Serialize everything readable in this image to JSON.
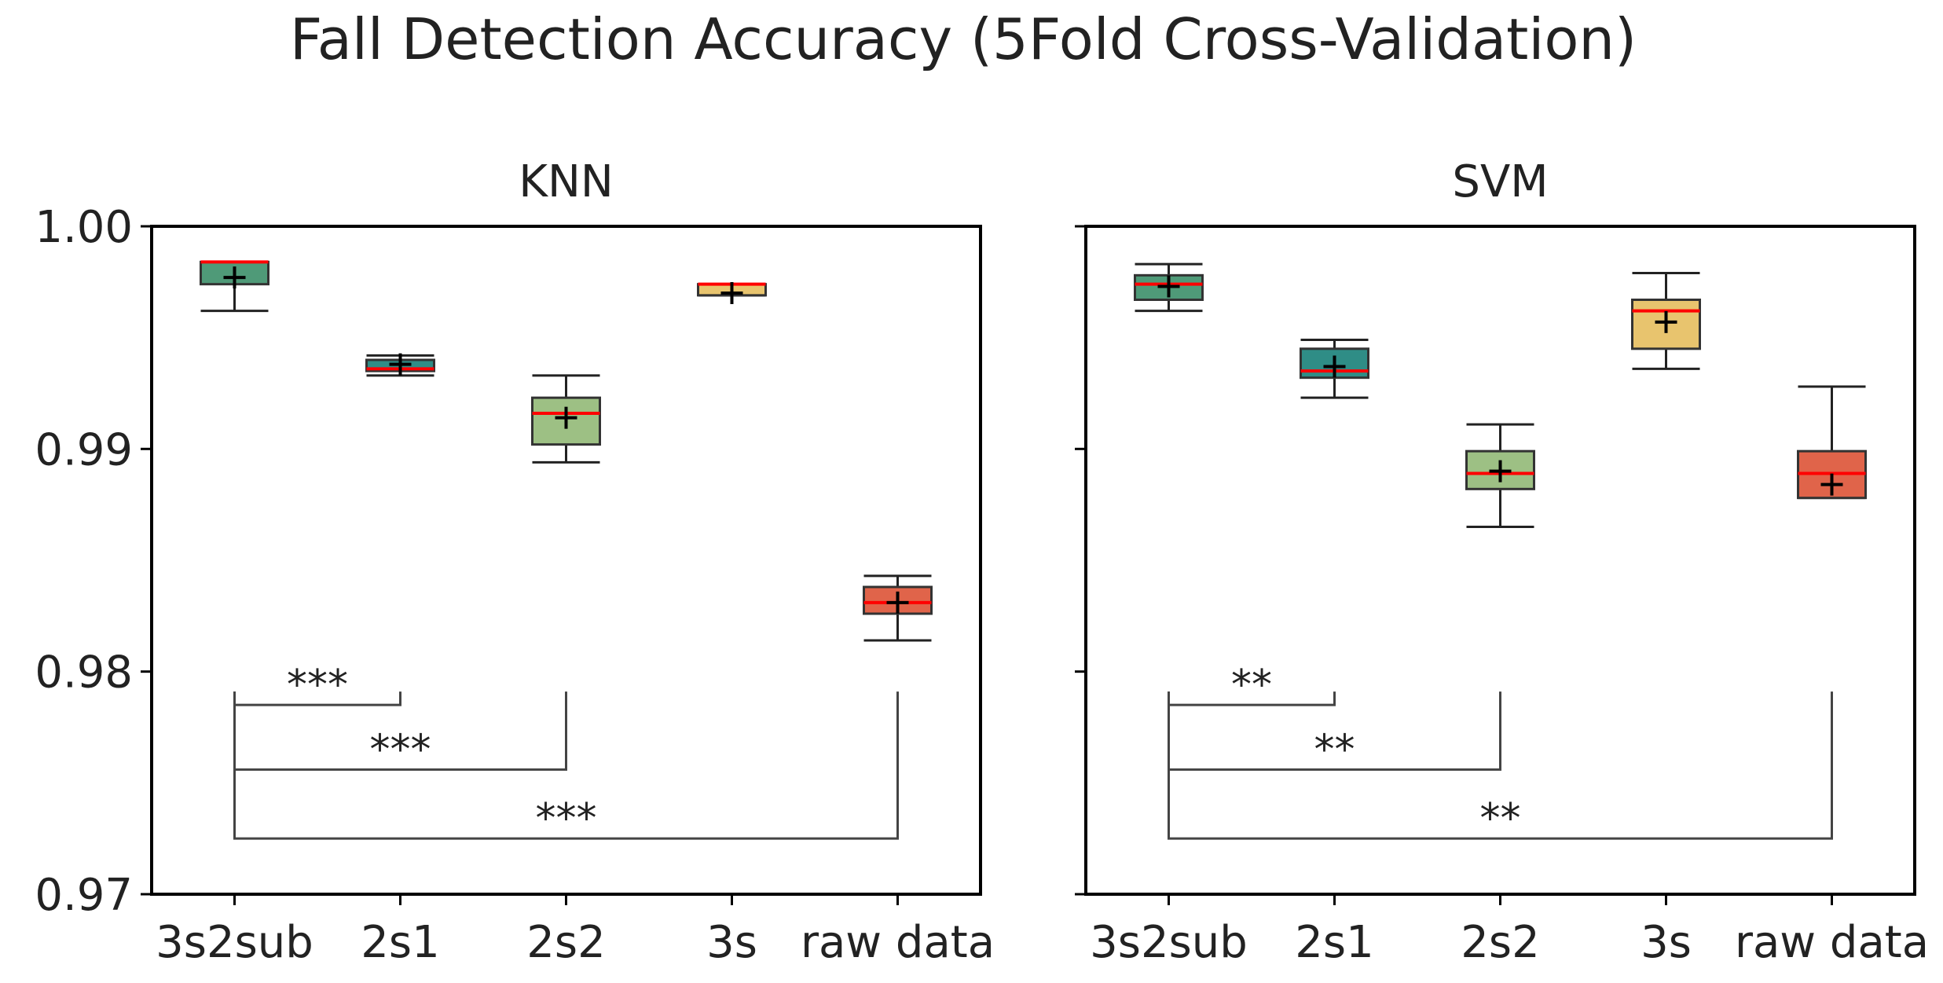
{
  "chart_data": {
    "type": "boxplot",
    "title": "Fall Detection Accuracy (5Fold Cross-Validation)",
    "ylim": [
      0.97,
      1.0
    ],
    "yticks": [
      "0.97",
      "0.98",
      "0.99",
      "1.00"
    ],
    "ytick_values": [
      0.97,
      0.98,
      0.99,
      1.0
    ],
    "categories": [
      "3s2sub",
      "2s1",
      "2s2",
      "3s",
      "raw data"
    ],
    "box_colors": [
      "#4f9a78",
      "#2f8d86",
      "#9dc084",
      "#e8c46e",
      "#e0644a"
    ],
    "median_color": "#ff0000",
    "mean_marker": "+",
    "panels": [
      {
        "name": "KNN",
        "boxes": [
          {
            "category": "3s2sub",
            "low": 0.9962,
            "q1": 0.9974,
            "median": 0.9984,
            "q3": 0.9984,
            "high": 0.9984,
            "mean": 0.9977
          },
          {
            "category": "2s1",
            "low": 0.9933,
            "q1": 0.9935,
            "median": 0.9936,
            "q3": 0.994,
            "high": 0.9942,
            "mean": 0.9938
          },
          {
            "category": "2s2",
            "low": 0.9894,
            "q1": 0.9902,
            "median": 0.9916,
            "q3": 0.9923,
            "high": 0.9933,
            "mean": 0.9914
          },
          {
            "category": "3s",
            "low": 0.9969,
            "q1": 0.9969,
            "median": 0.9974,
            "q3": 0.9974,
            "high": 0.9974,
            "mean": 0.997
          },
          {
            "category": "raw data",
            "low": 0.9814,
            "q1": 0.9826,
            "median": 0.9831,
            "q3": 0.9838,
            "high": 0.9843,
            "mean": 0.9831
          }
        ],
        "significance": [
          {
            "from": "3s2sub",
            "to": "2s1",
            "label": "***"
          },
          {
            "from": "3s2sub",
            "to": "2s2",
            "label": "***"
          },
          {
            "from": "3s2sub",
            "to": "raw data",
            "label": "***"
          }
        ]
      },
      {
        "name": "SVM",
        "boxes": [
          {
            "category": "3s2sub",
            "low": 0.9962,
            "q1": 0.9967,
            "median": 0.9974,
            "q3": 0.9978,
            "high": 0.9983,
            "mean": 0.9973
          },
          {
            "category": "2s1",
            "low": 0.9923,
            "q1": 0.9932,
            "median": 0.9935,
            "q3": 0.9945,
            "high": 0.9949,
            "mean": 0.9937
          },
          {
            "category": "2s2",
            "low": 0.9865,
            "q1": 0.9882,
            "median": 0.9889,
            "q3": 0.9899,
            "high": 0.9911,
            "mean": 0.989
          },
          {
            "category": "3s",
            "low": 0.9936,
            "q1": 0.9945,
            "median": 0.9962,
            "q3": 0.9967,
            "high": 0.9979,
            "mean": 0.9957
          },
          {
            "category": "raw data",
            "low": 0.9878,
            "q1": 0.9878,
            "median": 0.9889,
            "q3": 0.9899,
            "high": 0.9928,
            "mean": 0.9884
          }
        ],
        "significance": [
          {
            "from": "3s2sub",
            "to": "2s1",
            "label": "**"
          },
          {
            "from": "3s2sub",
            "to": "2s2",
            "label": "**"
          },
          {
            "from": "3s2sub",
            "to": "raw data",
            "label": "**"
          }
        ]
      }
    ]
  }
}
